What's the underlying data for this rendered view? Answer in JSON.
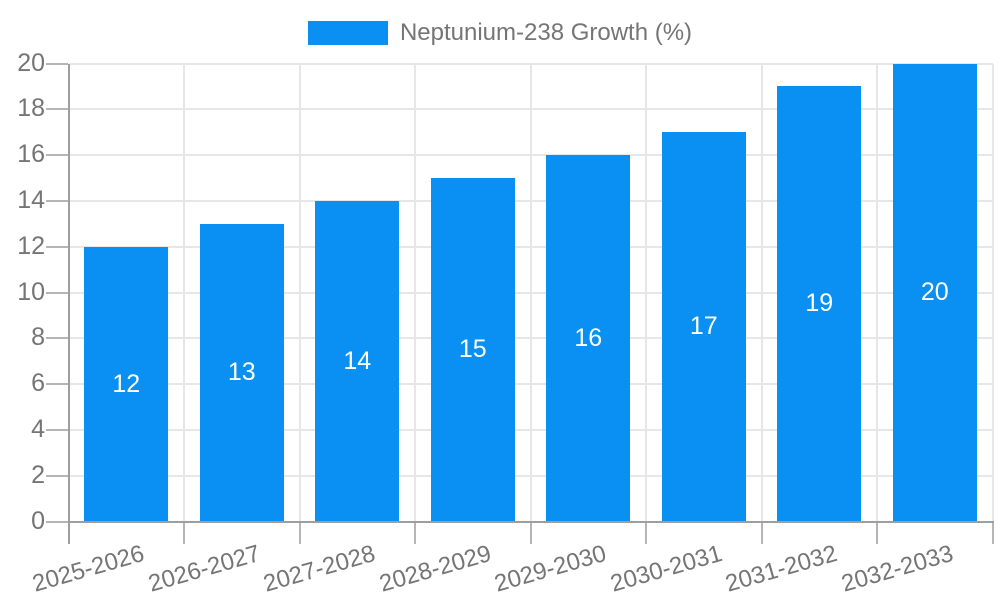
{
  "chart_data": {
    "type": "bar",
    "title": "Neptunium-238 Growth (%)",
    "legend_position": "top",
    "categories": [
      "2025-2026",
      "2026-2027",
      "2027-2028",
      "2028-2029",
      "2029-2030",
      "2030-2031",
      "2031-2032",
      "2032-2033"
    ],
    "values": [
      12,
      13,
      14,
      15,
      16,
      17,
      19,
      20
    ],
    "ylim": [
      0,
      20
    ],
    "yticks": [
      0,
      2,
      4,
      6,
      8,
      10,
      12,
      14,
      16,
      18,
      20
    ],
    "grid": true,
    "x_label_rotation_deg": -16,
    "colors": {
      "bar": "#0a90f2",
      "bar_label": "#ffffff",
      "axis_text": "#757575",
      "axis_line": "#9e9e9e",
      "tick": "#b5b5b5",
      "gridline": "#e7e7e7",
      "background": "#ffffff"
    }
  }
}
